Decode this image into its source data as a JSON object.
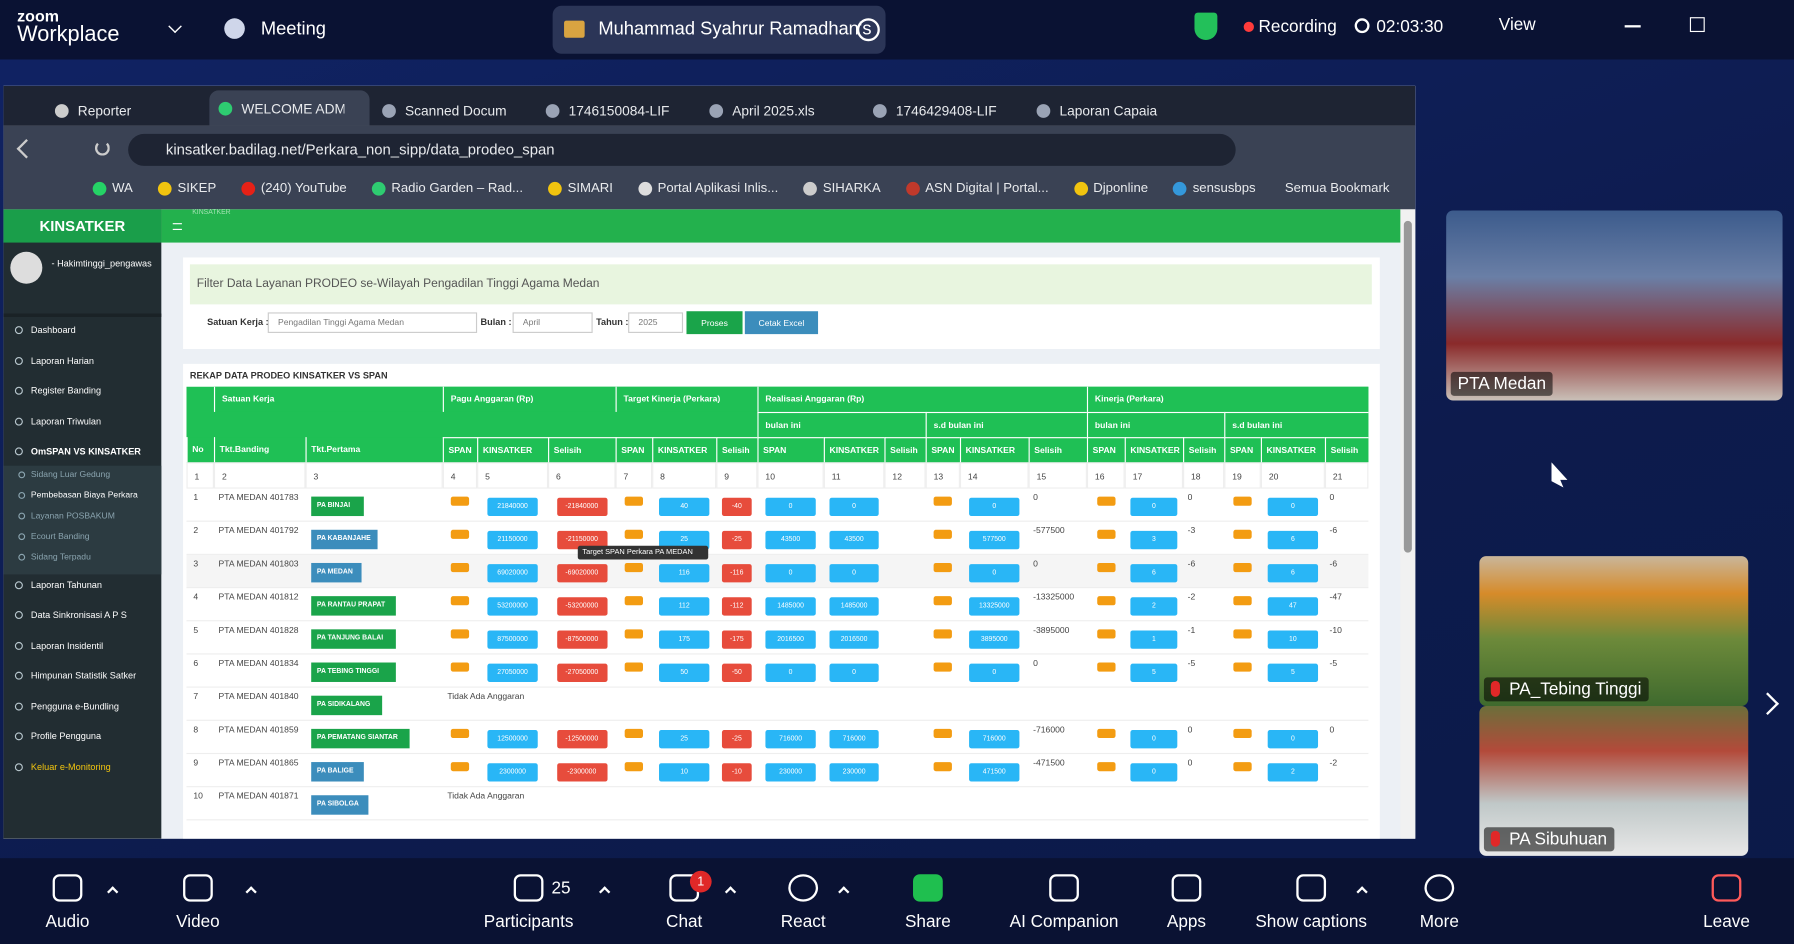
{
  "zoom_bar": {
    "logo_top": "zoom",
    "logo_bottom": "Workplace",
    "meeting": "Meeting",
    "host_title": "Muhammad Syahrur Ramadhan's",
    "recording": "Recording",
    "timer": "02:03:30",
    "view": "View"
  },
  "browser": {
    "tabs": [
      "Reporter",
      "WELCOME ADM",
      "Scanned Docum",
      "1746150084-LIF",
      "April 2025.xls",
      "1746429408-LIF",
      "Laporan Capaia"
    ],
    "url": "kinsatker.badilag.net/Perkara_non_sipp/data_prodeo_span",
    "bookmarks": [
      "WA",
      "SIKEP",
      "(240) YouTube",
      "Radio Garden – Rad...",
      "SIMARI",
      "Portal Aplikasi Inlis...",
      "SIHARKA",
      "ASN Digital | Portal...",
      "Djponline",
      "sensusbps"
    ],
    "all_bookmarks": "Semua Bookmark"
  },
  "sidebar": {
    "brand": "KINSATKER",
    "user": "- Hakimtinggi_pengawas",
    "menu": [
      {
        "label": "Dashboard"
      },
      {
        "label": "Laporan Harian"
      },
      {
        "label": "Register Banding"
      },
      {
        "label": "Laporan Triwulan"
      },
      {
        "label": "OmSPAN VS KINSATKER",
        "children": [
          "Sidang Luar Gedung",
          "Pembebasan Biaya Perkara",
          "Layanan POSBAKUM",
          "Ecourt Banding",
          "Sidang Terpadu"
        ]
      },
      {
        "label": "Laporan Tahunan"
      },
      {
        "label": "Data Sinkronisasi A P S"
      },
      {
        "label": "Laporan Insidentil"
      },
      {
        "label": "Himpunan Statistik Satker"
      },
      {
        "label": "Pengguna e-Bundling"
      },
      {
        "label": "Profile Pengguna"
      },
      {
        "label": "Keluar e-Monitoring"
      }
    ]
  },
  "page": {
    "breadcrumb": "KINSATKER",
    "filter_title": "Filter Data Layanan PRODEO se-Wilayah Pengadilan Tinggi Agama Medan",
    "satker_label": "Satuan Kerja :",
    "satker_value": "Pengadilan Tinggi Agama Medan",
    "bulan_label": "Bulan :",
    "bulan_value": "April",
    "tahun_label": "Tahun :",
    "tahun_value": "2025",
    "proses": "Proses",
    "cetak": "Cetak Excel",
    "rekap_title": "REKAP DATA PRODEO KINSATKER VS SPAN",
    "tooltip": "Target SPAN Perkara PA MEDAN"
  },
  "table": {
    "groups": [
      "Satuan Kerja",
      "Pagu Anggaran (Rp)",
      "Target Kinerja (Perkara)",
      "Realisasi Anggaran (Rp)",
      "Kinerja (Perkara)"
    ],
    "subgroups": [
      "bulan ini",
      "s.d bulan ini",
      "bulan ini",
      "s.d bulan ini"
    ],
    "columns": [
      "No",
      "Tkt.Banding",
      "Tkt.Pertama",
      "SPAN",
      "KINSATKER",
      "Selisih",
      "SPAN",
      "KINSATKER",
      "Selisih",
      "SPAN",
      "KINSATKER",
      "Selisih",
      "SPAN",
      "KINSATKER",
      "Selisih",
      "SPAN",
      "KINSATKER",
      "Selisih",
      "SPAN",
      "KINSATKER",
      "Selisih"
    ],
    "column_numbers": [
      1,
      2,
      3,
      4,
      5,
      6,
      7,
      8,
      9,
      10,
      11,
      12,
      13,
      14,
      15,
      16,
      17,
      18,
      19,
      20,
      21
    ],
    "rows": [
      {
        "no": 1,
        "banding": "PTA MEDAN 401783",
        "pertama": "PA BINJAI",
        "color": "#1aa44a",
        "values": [
          21840000,
          -21840000,
          40,
          -40,
          0,
          0,
          0,
          0,
          0,
          0,
          0,
          0
        ]
      },
      {
        "no": 2,
        "banding": "PTA MEDAN 401792",
        "pertama": "PA KABANJAHE",
        "color": "#3c8dbc",
        "values": [
          21150000,
          -21150000,
          25,
          -25,
          43500,
          43500,
          577500,
          -577500,
          3,
          -3,
          6,
          -6
        ]
      },
      {
        "no": 3,
        "banding": "PTA MEDAN 401803",
        "pertama": "PA MEDAN",
        "color": "#3c8dbc",
        "values": [
          69020000,
          -69020000,
          116,
          -116,
          0,
          0,
          0,
          0,
          6,
          -6,
          6,
          -6
        ]
      },
      {
        "no": 4,
        "banding": "PTA MEDAN 401812",
        "pertama": "PA RANTAU PRAPAT",
        "color": "#1aa44a",
        "values": [
          53200000,
          -53200000,
          112,
          -112,
          1485000,
          1485000,
          13325000,
          -13325000,
          2,
          -2,
          47,
          -47
        ]
      },
      {
        "no": 5,
        "banding": "PTA MEDAN 401828",
        "pertama": "PA TANJUNG BALAI",
        "color": "#1aa44a",
        "values": [
          87500000,
          -87500000,
          175,
          -175,
          2016500,
          2016500,
          3895000,
          -3895000,
          1,
          -1,
          10,
          -10
        ]
      },
      {
        "no": 6,
        "banding": "PTA MEDAN 401834",
        "pertama": "PA TEBING TINGGI",
        "color": "#1aa44a",
        "values": [
          27050000,
          -27050000,
          50,
          -50,
          0,
          0,
          0,
          0,
          5,
          -5,
          5,
          -5
        ]
      },
      {
        "no": 7,
        "banding": "PTA MEDAN 401840",
        "pertama": "PA SIDIKALANG",
        "color": "#1aa44a",
        "note": "Tidak Ada Anggaran"
      },
      {
        "no": 8,
        "banding": "PTA MEDAN 401859",
        "pertama": "PA PEMATANG SIANTAR",
        "color": "#1aa44a",
        "values": [
          12500000,
          -12500000,
          25,
          -25,
          716000,
          716000,
          716000,
          -716000,
          0,
          0,
          0,
          0
        ]
      },
      {
        "no": 9,
        "banding": "PTA MEDAN 401865",
        "pertama": "PA BALIGE",
        "color": "#3c8dbc",
        "values": [
          2300000,
          -2300000,
          10,
          -10,
          230000,
          230000,
          471500,
          -471500,
          0,
          0,
          2,
          -2
        ]
      },
      {
        "no": 10,
        "banding": "PTA MEDAN 401871",
        "pertama": "PA SIBOLGA",
        "color": "#3c8dbc",
        "note": "Tidak Ada Anggaran"
      }
    ]
  },
  "video_tiles": [
    "PTA Medan",
    "PA_Tebing Tinggi",
    "PA Sibuhuan"
  ],
  "toolbar": {
    "audio": "Audio",
    "video": "Video",
    "participants": "Participants",
    "participant_count": 25,
    "chat": "Chat",
    "chat_badge": 1,
    "react": "React",
    "share": "Share",
    "ai": "AI Companion",
    "apps": "Apps",
    "captions": "Show captions",
    "more": "More",
    "leave": "Leave"
  }
}
